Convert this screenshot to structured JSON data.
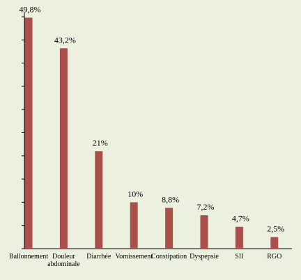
{
  "chart_data": {
    "type": "bar",
    "categories": [
      "Ballonnement",
      "Douleur abdominale",
      "Diarrhée",
      "Vomissement",
      "Constipation",
      "Dyspepsie",
      "SII",
      "RGO"
    ],
    "values": [
      49.8,
      43.2,
      21,
      10,
      8.8,
      7.2,
      4.7,
      2.5
    ],
    "value_labels": [
      "49,8%",
      "43,2%",
      "21%",
      "10%",
      "8,8%",
      "7,2%",
      "4,7%",
      "2,5%"
    ],
    "color": "#a9504b",
    "ylim": [
      0,
      50
    ],
    "yticks": [
      0,
      5,
      10,
      15,
      20,
      25,
      30,
      35,
      40,
      45,
      50
    ]
  }
}
